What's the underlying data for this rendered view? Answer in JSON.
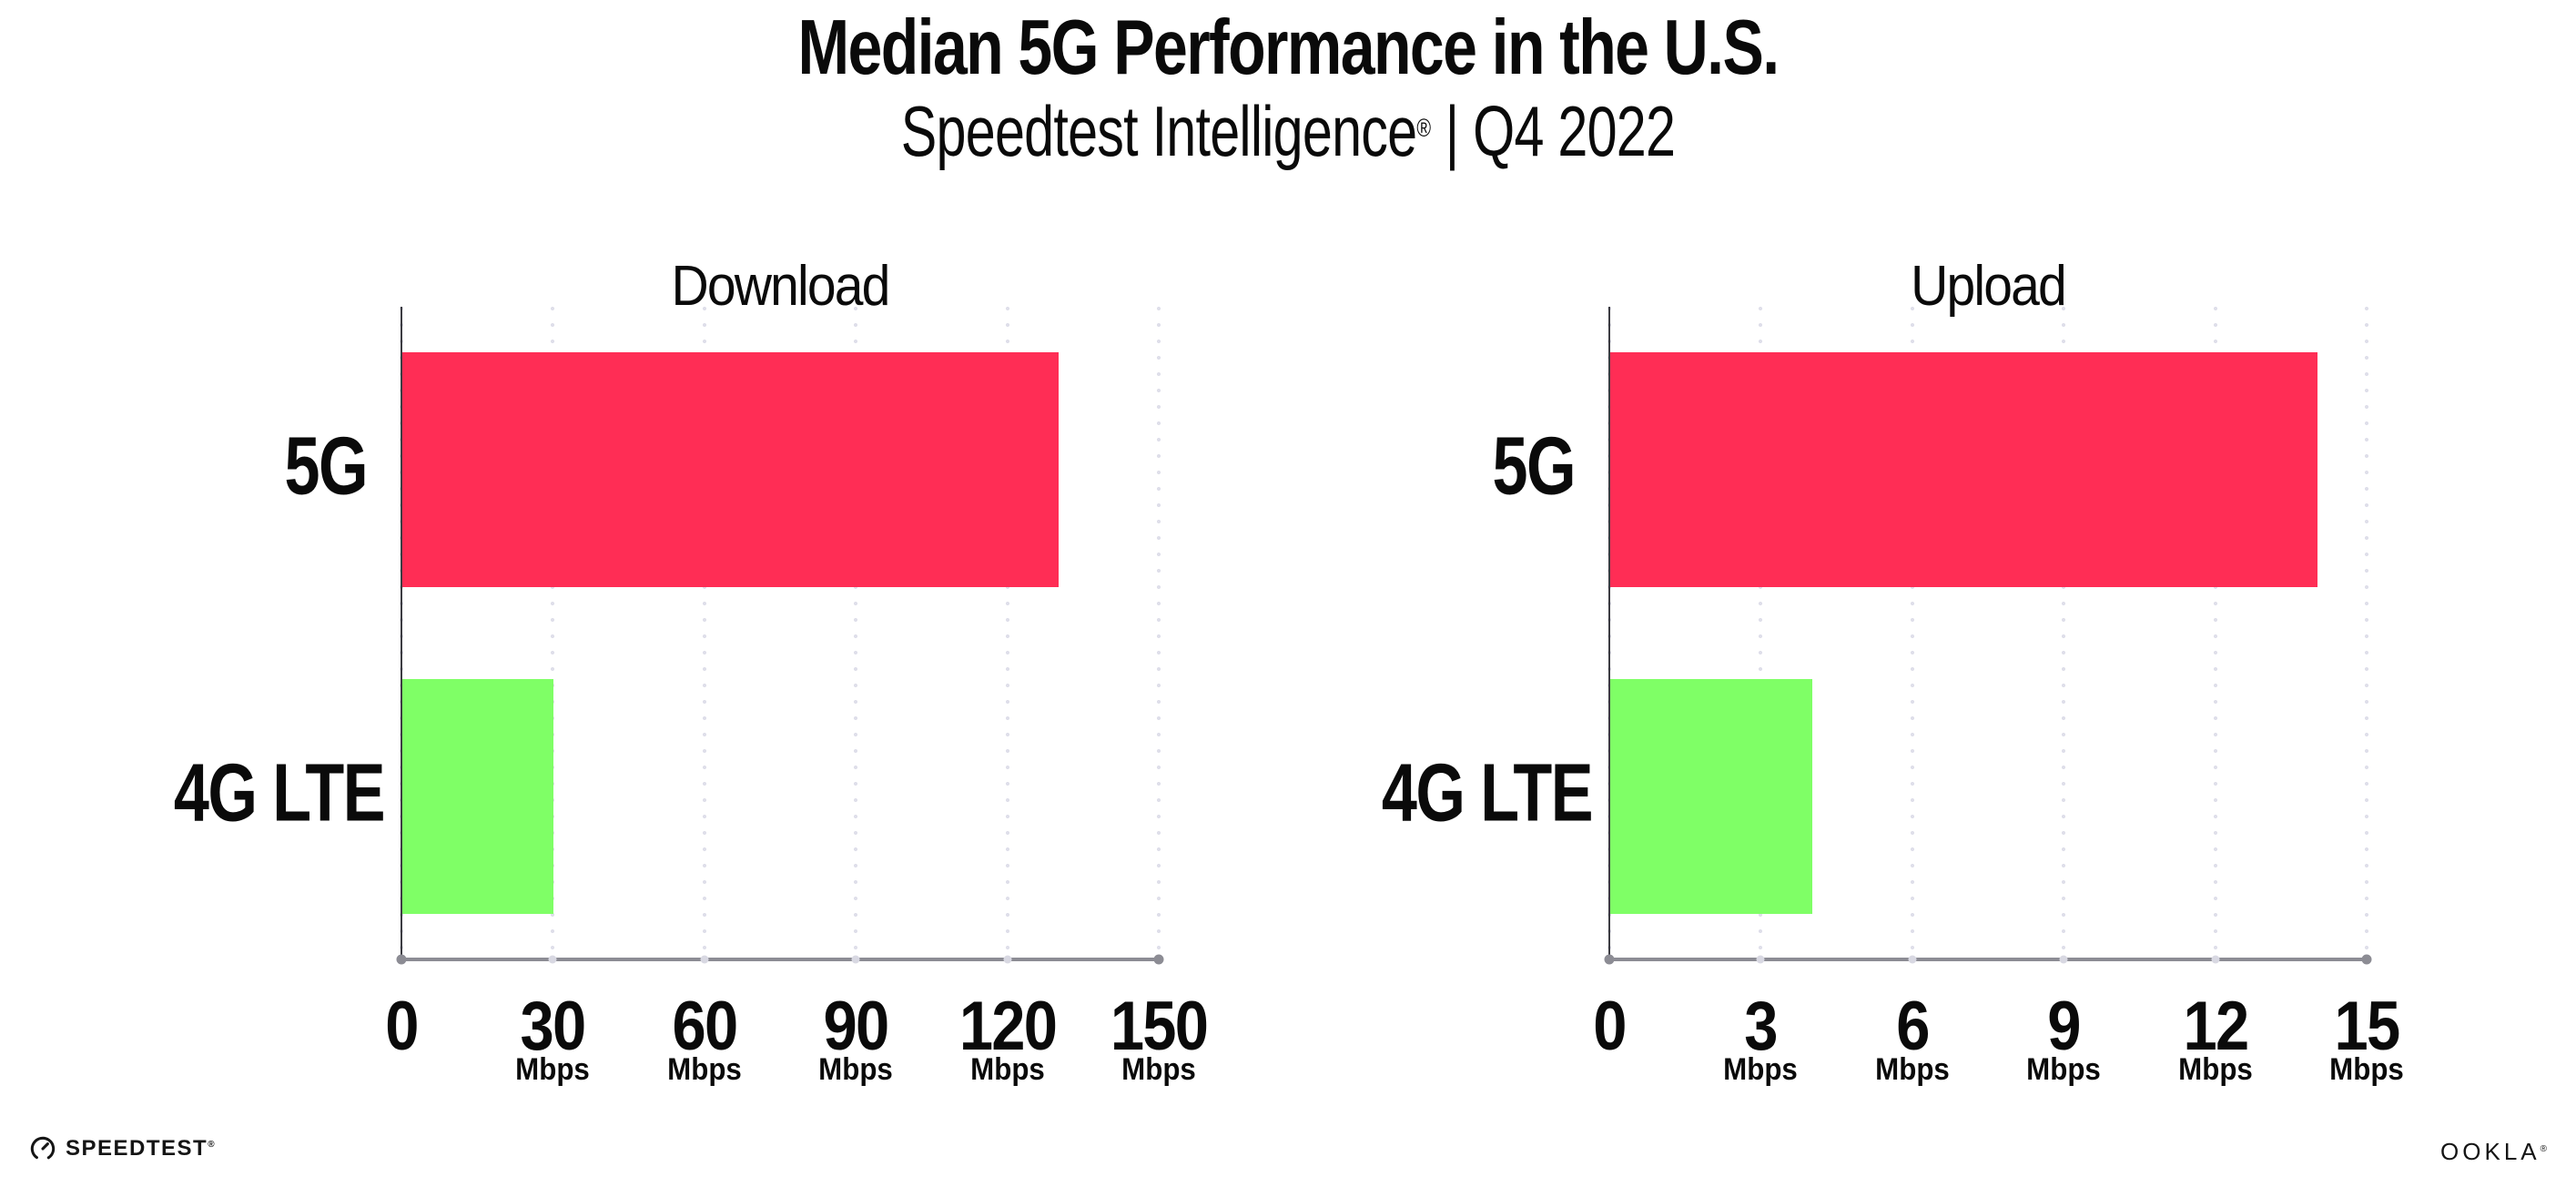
{
  "header": {
    "title": "Median 5G Performance in the U.S.",
    "subtitle_brand": "Speedtest Intelligence",
    "subtitle_reg": "®",
    "subtitle_rest": " | Q4 2022"
  },
  "footer": {
    "speedtest_label": "SPEEDTEST",
    "speedtest_reg": "®",
    "speedtest_icon": "gauge-icon",
    "ookla_label": "OOKLA",
    "ookla_reg": "®"
  },
  "colors": {
    "bar_5g": "#FF2D55",
    "bar_4g_lte": "#7FFF66",
    "gridline": "#DFDFEA",
    "x_axis": "#8C8C94",
    "y_axis": "#3C3C42",
    "tick_dot_inner": "#D8D8E2",
    "text": "#0A0A0A"
  },
  "chart_data": [
    {
      "type": "bar",
      "orientation": "horizontal",
      "title": "Download",
      "categories": [
        "5G",
        "4G LTE"
      ],
      "values": [
        130,
        30
      ],
      "unit": "Mbps",
      "xlim": [
        0,
        150
      ],
      "xticks": [
        0,
        30,
        60,
        90,
        120,
        150
      ],
      "grid": "vertical-dotted",
      "legend": "none",
      "bar_colors": [
        "#FF2D55",
        "#7FFF66"
      ]
    },
    {
      "type": "bar",
      "orientation": "horizontal",
      "title": "Upload",
      "categories": [
        "5G",
        "4G LTE"
      ],
      "values": [
        14,
        4
      ],
      "unit": "Mbps",
      "xlim": [
        0,
        15
      ],
      "xticks": [
        0,
        3,
        6,
        9,
        12,
        15
      ],
      "grid": "vertical-dotted",
      "legend": "none",
      "bar_colors": [
        "#FF2D55",
        "#7FFF66"
      ]
    }
  ]
}
